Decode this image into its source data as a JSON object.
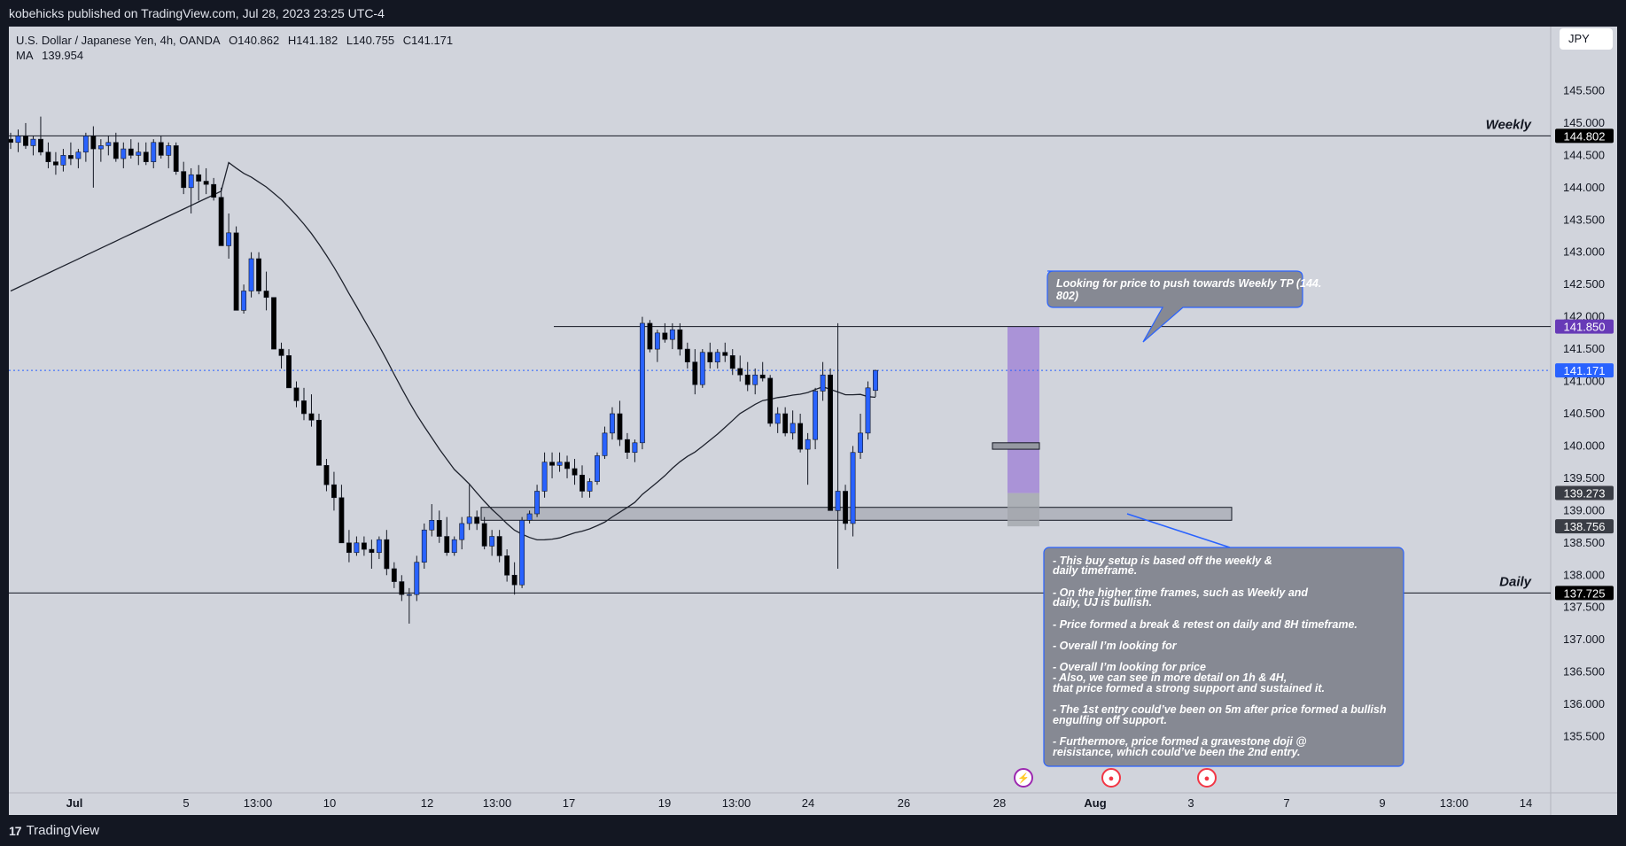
{
  "header": {
    "publish_text": "kobehicks published on TradingView.com, Jul 28, 2023 23:25 UTC-4"
  },
  "footer": {
    "brand": "TradingView",
    "logo_glyph": "17"
  },
  "legend": {
    "symbol": "U.S. Dollar / Japanese Yen, 4h, OANDA",
    "open": "O140.862",
    "high": "H141.182",
    "low": "L140.755",
    "close": "C141.171",
    "ma_label": "MA",
    "ma_value": "139.954"
  },
  "currency": "JPY",
  "colors": {
    "bull": "#2962ff",
    "bear": "#000000",
    "price_line": "#2962ff",
    "resistance_tag": "#673ab7",
    "zone": "#9598a1",
    "annotation": "#868993"
  },
  "chart_data": {
    "type": "candlestick",
    "ylim": [
      135.3,
      146.0
    ],
    "y_ticks": [
      "135.500",
      "136.000",
      "136.500",
      "137.000",
      "137.500",
      "138.000",
      "138.500",
      "139.000",
      "139.500",
      "140.000",
      "140.500",
      "141.000",
      "141.500",
      "142.000",
      "142.500",
      "143.000",
      "143.500",
      "144.000",
      "144.500",
      "145.000",
      "145.500"
    ],
    "x_ticks": [
      "Jul",
      "5",
      "13:00",
      "10",
      "12",
      "13:00",
      "17",
      "19",
      "13:00",
      "24",
      "26",
      "28",
      "Aug",
      "3",
      "7",
      "9",
      "13:00",
      "14"
    ],
    "levels": [
      {
        "label": "Weekly",
        "price": "144.802",
        "value": 144.802,
        "tag_color": "#000000"
      },
      {
        "label": "Daily",
        "price": "137.725",
        "value": 137.725,
        "tag_color": "#000000"
      }
    ],
    "price_tags": [
      {
        "price": "141.850",
        "value": 141.85,
        "color": "#673ab7",
        "role": "resistance"
      },
      {
        "price": "141.171",
        "value": 141.171,
        "color": "#2962ff",
        "role": "current"
      },
      {
        "price": "139.273",
        "value": 139.273,
        "color": "#3a3d45",
        "role": "entry"
      },
      {
        "price": "138.756",
        "value": 138.756,
        "color": "#3a3d45",
        "role": "stop"
      }
    ],
    "candles": [
      [
        144.75,
        144.85,
        144.6,
        144.7
      ],
      [
        144.7,
        144.9,
        144.55,
        144.8
      ],
      [
        144.8,
        145.0,
        144.6,
        144.65
      ],
      [
        144.65,
        144.8,
        144.5,
        144.75
      ],
      [
        144.75,
        145.1,
        144.5,
        144.55
      ],
      [
        144.55,
        144.7,
        144.3,
        144.4
      ],
      [
        144.4,
        144.55,
        144.2,
        144.35
      ],
      [
        144.35,
        144.6,
        144.25,
        144.5
      ],
      [
        144.5,
        144.7,
        144.35,
        144.45
      ],
      [
        144.45,
        144.6,
        144.3,
        144.55
      ],
      [
        144.55,
        144.85,
        144.4,
        144.8
      ],
      [
        144.8,
        144.95,
        144.0,
        144.6
      ],
      [
        144.6,
        144.75,
        144.4,
        144.65
      ],
      [
        144.65,
        144.8,
        144.5,
        144.7
      ],
      [
        144.7,
        144.85,
        144.4,
        144.45
      ],
      [
        144.45,
        144.7,
        144.3,
        144.6
      ],
      [
        144.6,
        144.75,
        144.45,
        144.5
      ],
      [
        144.5,
        144.7,
        144.35,
        144.55
      ],
      [
        144.55,
        144.7,
        144.35,
        144.4
      ],
      [
        144.4,
        144.75,
        144.3,
        144.7
      ],
      [
        144.7,
        144.8,
        144.45,
        144.5
      ],
      [
        144.5,
        144.7,
        144.3,
        144.65
      ],
      [
        144.65,
        144.7,
        144.2,
        144.25
      ],
      [
        144.25,
        144.4,
        143.9,
        144.0
      ],
      [
        144.0,
        144.3,
        143.6,
        144.2
      ],
      [
        144.2,
        144.35,
        143.8,
        144.1
      ],
      [
        144.1,
        144.3,
        143.9,
        144.05
      ],
      [
        144.05,
        144.15,
        143.8,
        143.85
      ],
      [
        143.85,
        144.0,
        143.1,
        143.1
      ],
      [
        143.1,
        143.6,
        142.9,
        143.3
      ],
      [
        143.3,
        143.4,
        142.1,
        142.1
      ],
      [
        142.1,
        142.5,
        142.05,
        142.4
      ],
      [
        142.4,
        143.0,
        142.3,
        142.9
      ],
      [
        142.9,
        143.0,
        142.35,
        142.4
      ],
      [
        142.4,
        142.7,
        142.1,
        142.3
      ],
      [
        142.3,
        142.3,
        141.5,
        141.5
      ],
      [
        141.5,
        141.6,
        141.2,
        141.4
      ],
      [
        141.4,
        141.5,
        140.9,
        140.9
      ],
      [
        140.9,
        141.0,
        140.6,
        140.7
      ],
      [
        140.7,
        140.9,
        140.4,
        140.5
      ],
      [
        140.5,
        140.8,
        140.3,
        140.4
      ],
      [
        140.4,
        140.5,
        139.7,
        139.7
      ],
      [
        139.7,
        139.8,
        139.3,
        139.4
      ],
      [
        139.4,
        139.6,
        139.0,
        139.2
      ],
      [
        139.2,
        139.4,
        138.5,
        138.5
      ],
      [
        138.5,
        138.7,
        138.2,
        138.35
      ],
      [
        138.35,
        138.6,
        138.3,
        138.5
      ],
      [
        138.5,
        138.6,
        138.3,
        138.4
      ],
      [
        138.4,
        138.55,
        138.1,
        138.35
      ],
      [
        138.35,
        138.6,
        138.25,
        138.55
      ],
      [
        138.55,
        138.7,
        138.0,
        138.1
      ],
      [
        138.1,
        138.2,
        137.8,
        137.9
      ],
      [
        137.9,
        138.0,
        137.6,
        137.7
      ],
      [
        137.7,
        137.8,
        137.25,
        137.7
      ],
      [
        137.7,
        138.3,
        137.6,
        138.2
      ],
      [
        138.2,
        138.8,
        138.1,
        138.7
      ],
      [
        138.7,
        139.1,
        138.6,
        138.85
      ],
      [
        138.85,
        139.0,
        138.5,
        138.6
      ],
      [
        138.6,
        138.9,
        138.3,
        138.35
      ],
      [
        138.35,
        138.6,
        138.3,
        138.55
      ],
      [
        138.55,
        138.9,
        138.4,
        138.8
      ],
      [
        138.8,
        139.4,
        138.7,
        138.9
      ],
      [
        138.9,
        139.0,
        138.7,
        138.8
      ],
      [
        138.8,
        138.9,
        138.4,
        138.45
      ],
      [
        138.45,
        138.7,
        138.3,
        138.6
      ],
      [
        138.6,
        138.7,
        138.2,
        138.3
      ],
      [
        138.3,
        138.4,
        137.9,
        138.0
      ],
      [
        138.0,
        138.2,
        137.7,
        137.85
      ],
      [
        137.85,
        138.9,
        137.8,
        138.85
      ],
      [
        138.85,
        139.0,
        138.8,
        138.95
      ],
      [
        138.95,
        139.4,
        138.9,
        139.3
      ],
      [
        139.3,
        139.9,
        139.2,
        139.75
      ],
      [
        139.75,
        139.9,
        139.5,
        139.7
      ],
      [
        139.7,
        139.9,
        139.6,
        139.75
      ],
      [
        139.75,
        139.85,
        139.5,
        139.65
      ],
      [
        139.65,
        139.8,
        139.4,
        139.55
      ],
      [
        139.55,
        139.7,
        139.2,
        139.3
      ],
      [
        139.3,
        139.5,
        139.2,
        139.45
      ],
      [
        139.45,
        139.9,
        139.4,
        139.85
      ],
      [
        139.85,
        140.3,
        139.8,
        140.2
      ],
      [
        140.2,
        140.6,
        140.1,
        140.5
      ],
      [
        140.5,
        140.7,
        140.0,
        140.1
      ],
      [
        140.1,
        140.2,
        139.8,
        139.9
      ],
      [
        139.9,
        140.1,
        139.75,
        140.05
      ],
      [
        140.05,
        142.0,
        139.95,
        141.9
      ],
      [
        141.9,
        141.95,
        141.45,
        141.5
      ],
      [
        141.5,
        141.8,
        141.3,
        141.75
      ],
      [
        141.75,
        141.9,
        141.6,
        141.65
      ],
      [
        141.65,
        141.9,
        141.5,
        141.8
      ],
      [
        141.8,
        141.9,
        141.4,
        141.5
      ],
      [
        141.5,
        141.6,
        141.2,
        141.3
      ],
      [
        141.3,
        141.5,
        140.8,
        140.95
      ],
      [
        140.95,
        141.5,
        140.9,
        141.45
      ],
      [
        141.45,
        141.6,
        141.2,
        141.3
      ],
      [
        141.3,
        141.5,
        141.2,
        141.45
      ],
      [
        141.45,
        141.6,
        141.3,
        141.4
      ],
      [
        141.4,
        141.5,
        141.1,
        141.2
      ],
      [
        141.2,
        141.4,
        141.0,
        141.1
      ],
      [
        141.1,
        141.3,
        140.85,
        140.95
      ],
      [
        140.95,
        141.2,
        140.8,
        141.1
      ],
      [
        141.1,
        141.3,
        141.0,
        141.05
      ],
      [
        141.05,
        141.1,
        140.3,
        140.35
      ],
      [
        140.35,
        140.6,
        140.2,
        140.5
      ],
      [
        140.5,
        140.6,
        140.15,
        140.2
      ],
      [
        140.2,
        140.55,
        140.1,
        140.35
      ],
      [
        140.35,
        140.5,
        139.9,
        139.95
      ],
      [
        139.95,
        140.2,
        139.4,
        140.1
      ],
      [
        140.1,
        140.9,
        139.95,
        140.85
      ],
      [
        140.85,
        141.3,
        140.7,
        141.1
      ],
      [
        141.1,
        141.2,
        139.0,
        139.0
      ],
      [
        139.0,
        141.9,
        138.1,
        139.3
      ],
      [
        139.3,
        139.4,
        138.7,
        138.8
      ],
      [
        138.8,
        140.0,
        138.6,
        139.9
      ],
      [
        139.9,
        140.5,
        139.8,
        140.2
      ],
      [
        140.2,
        141.0,
        140.1,
        140.9
      ],
      [
        140.86,
        141.18,
        140.76,
        141.17
      ]
    ]
  },
  "annotations": {
    "top_callout": "Looking for price to push towards Weekly TP (144.802)",
    "notes": [
      "- This buy setup is based off the weekly & daily timeframe.",
      "- On the higher time frames, such as Weekly and daily, UJ is bullish.",
      "- Price formed a break & retest on daily and 8H timeframe.",
      "- Overall I'm looking for",
      "- Overall I'm looking for price",
      "- Also, we can see in more detail on 1h & 4H,",
      "that price formed a strong support and sustained it.",
      "- The 1st entry could've been on 5m after price formed a bullish engulfing off support.",
      "- Furthermore, price formed a gravestone doji @ reisistance, which could've been the 2nd entry."
    ]
  },
  "event_icons": [
    "lightning-icon",
    "us-flag-icon",
    "us-flag-icon"
  ]
}
